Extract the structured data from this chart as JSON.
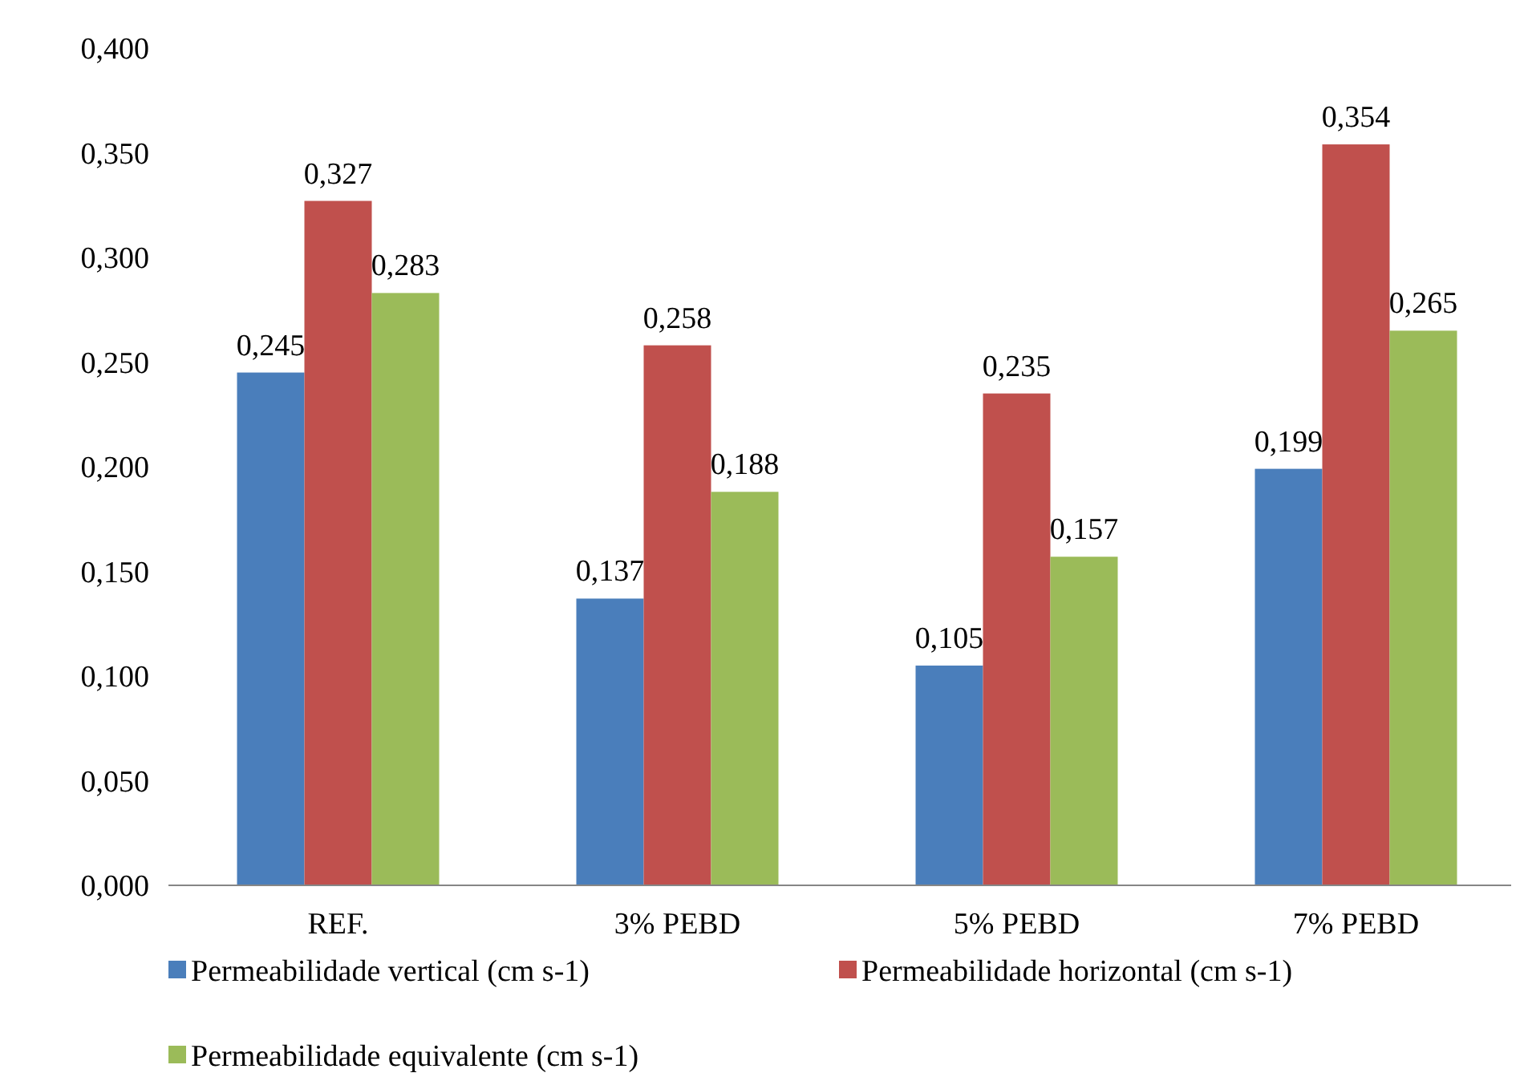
{
  "chart_data": {
    "type": "bar",
    "categories": [
      "REF.",
      "3% PEBD",
      "5% PEBD",
      "7% PEBD"
    ],
    "series": [
      {
        "name": "Permeabilidade vertical (cm s-1)",
        "color": "#4a7ebb",
        "values": [
          0.245,
          0.137,
          0.105,
          0.199
        ],
        "value_labels": [
          "0,245",
          "0,137",
          "0,105",
          "0,199"
        ]
      },
      {
        "name": "Permeabilidade horizontal (cm s-1)",
        "color": "#c0504d",
        "values": [
          0.327,
          0.258,
          0.235,
          0.354
        ],
        "value_labels": [
          "0,327",
          "0,258",
          "0,235",
          "0,354"
        ]
      },
      {
        "name": "Permeabilidade equivalente (cm s-1)",
        "color": "#9bbb59",
        "values": [
          0.283,
          0.188,
          0.157,
          0.265
        ],
        "value_labels": [
          "0,283",
          "0,188",
          "0,157",
          "0,265"
        ]
      }
    ],
    "ylim": [
      0,
      0.4
    ],
    "yticks": [
      {
        "value": 0,
        "label": "0,000"
      },
      {
        "value": 0.05,
        "label": "0,050"
      },
      {
        "value": 0.1,
        "label": "0,100"
      },
      {
        "value": 0.15,
        "label": "0,150"
      },
      {
        "value": 0.2,
        "label": "0,200"
      },
      {
        "value": 0.25,
        "label": "0,250"
      },
      {
        "value": 0.3,
        "label": "0,300"
      },
      {
        "value": 0.35,
        "label": "0,350"
      },
      {
        "value": 0.4,
        "label": "0,400"
      }
    ],
    "grid": false,
    "legend": "bottom"
  }
}
